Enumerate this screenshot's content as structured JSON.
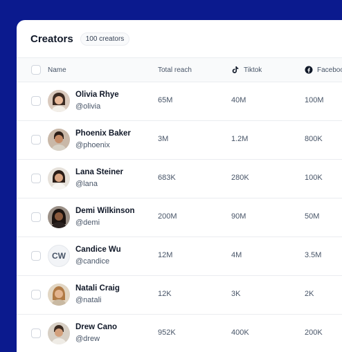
{
  "header": {
    "title": "Creators",
    "count_badge": "100 creators"
  },
  "columns": {
    "name": "Name",
    "reach": "Total reach",
    "tiktok": "Tiktok",
    "facebook": "Facebook"
  },
  "rows": [
    {
      "name": "Olivia Rhye",
      "handle": "@olivia",
      "reach": "65M",
      "tiktok": "40M",
      "facebook": "100M"
    },
    {
      "name": "Phoenix Baker",
      "handle": "@phoenix",
      "reach": "3M",
      "tiktok": "1.2M",
      "facebook": "800K"
    },
    {
      "name": "Lana Steiner",
      "handle": "@lana",
      "reach": "683K",
      "tiktok": "280K",
      "facebook": "100K"
    },
    {
      "name": "Demi Wilkinson",
      "handle": "@demi",
      "reach": "200M",
      "tiktok": "90M",
      "facebook": "50M"
    },
    {
      "name": "Candice Wu",
      "handle": "@candice",
      "initials": "CW",
      "reach": "12M",
      "tiktok": "4M",
      "facebook": "3.5M"
    },
    {
      "name": "Natali Craig",
      "handle": "@natali",
      "reach": "12K",
      "tiktok": "3K",
      "facebook": "2K"
    },
    {
      "name": "Drew Cano",
      "handle": "@drew",
      "reach": "952K",
      "tiktok": "400K",
      "facebook": "200K"
    }
  ],
  "colors": {
    "background": "#0b1a8e",
    "card": "#ffffff",
    "border": "#eaecf0",
    "text": "#101828",
    "muted": "#475467"
  }
}
